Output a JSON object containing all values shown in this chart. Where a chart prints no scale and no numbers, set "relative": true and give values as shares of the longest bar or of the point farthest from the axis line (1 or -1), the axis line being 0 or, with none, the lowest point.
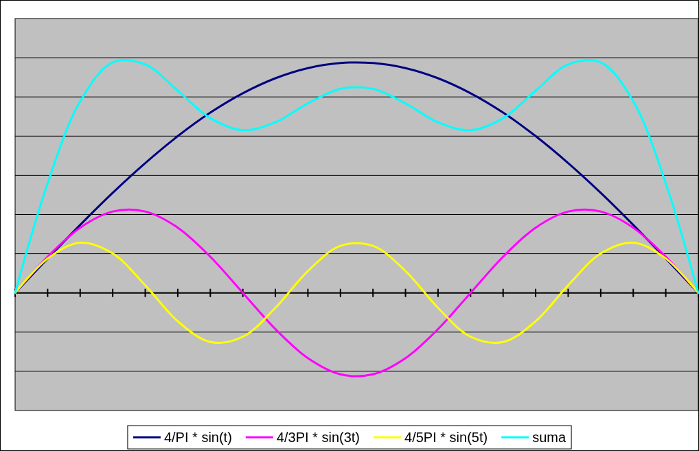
{
  "chart_data": {
    "type": "line",
    "relative": true,
    "grid": "y",
    "legend": "bottom",
    "marker": "none",
    "line_style": "solid",
    "categories": [
      null,
      null,
      null,
      null,
      null,
      null,
      null,
      null,
      null,
      null,
      null,
      null,
      null,
      null,
      null,
      null,
      null,
      null,
      null,
      null,
      null,
      null
    ],
    "series": [
      {
        "name": "4/PI * sin(t)",
        "color": "#000080",
        "values": [
          0,
          0.149,
          0.295,
          0.434,
          0.563,
          0.68,
          0.782,
          0.866,
          0.931,
          0.975,
          0.997,
          0.997,
          0.975,
          0.931,
          0.866,
          0.782,
          0.68,
          0.563,
          0.434,
          0.295,
          0.149,
          0
        ]
      },
      {
        "name": "4/3PI * sin(3t)",
        "color": "#ff00ff",
        "values": [
          0,
          0.157,
          0.283,
          0.353,
          0.353,
          0.283,
          0.157,
          0,
          -0.157,
          -0.283,
          -0.353,
          -0.353,
          -0.283,
          -0.157,
          0,
          0.157,
          0.283,
          0.353,
          0.353,
          0.283,
          0.157,
          0
        ]
      },
      {
        "name": "4/5PI * sin(5t)",
        "color": "#ffff00",
        "values": [
          0,
          0.149,
          0.218,
          0.171,
          0.033,
          -0.123,
          -0.213,
          -0.19,
          -0.065,
          0.095,
          0.204,
          0.204,
          0.095,
          -0.065,
          -0.19,
          -0.213,
          -0.123,
          0.033,
          0.171,
          0.218,
          0.149,
          0
        ]
      },
      {
        "name": "suma",
        "color": "#00ffff",
        "values": [
          0,
          0.475,
          0.831,
          1,
          0.991,
          0.877,
          0.758,
          0.706,
          0.74,
          0.822,
          0.885,
          0.885,
          0.822,
          0.74,
          0.706,
          0.758,
          0.877,
          0.991,
          1,
          0.831,
          0.475,
          0
        ]
      }
    ]
  }
}
